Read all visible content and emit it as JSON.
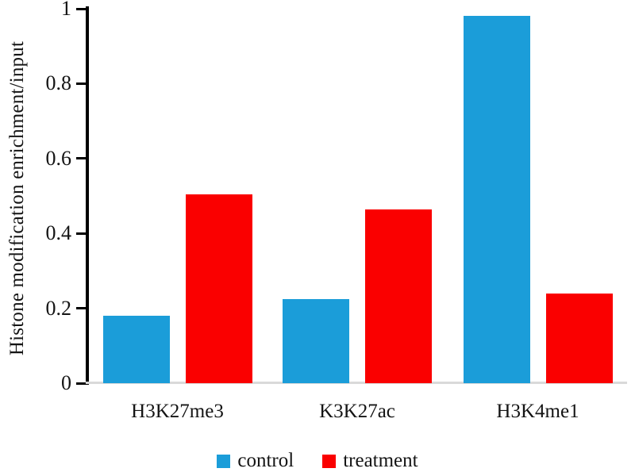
{
  "chart_data": {
    "type": "bar",
    "title": "",
    "ylabel": "Histone modification enrichment/input",
    "xlabel": "",
    "categories": [
      "H3K27me3",
      "K3K27ac",
      "H3K4me1"
    ],
    "series": [
      {
        "name": "control",
        "color": "#1b9dd9",
        "values": [
          0.18,
          0.225,
          0.98
        ]
      },
      {
        "name": "treatment",
        "color": "#fa0000",
        "values": [
          0.505,
          0.465,
          0.24
        ]
      }
    ],
    "ylim": [
      0,
      1
    ],
    "ytick_labels": [
      "0",
      "0.2",
      "0.4",
      "0.6",
      "0.8",
      "1"
    ],
    "grid": false,
    "legend_position": "bottom",
    "colors": {
      "axis": "#000000",
      "baseline": "#d9d9d9",
      "text": "#141414",
      "background": "#ffffff"
    }
  }
}
